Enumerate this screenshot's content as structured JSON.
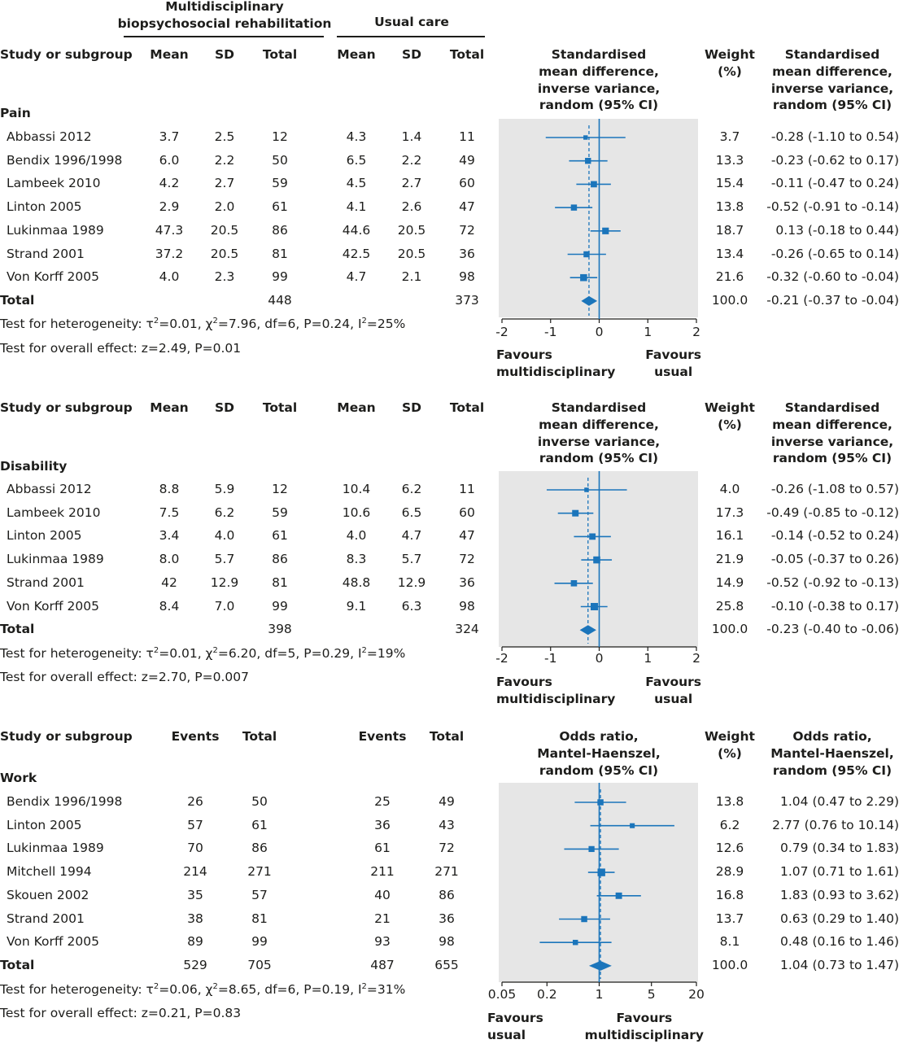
{
  "header": {
    "group1": "Multidisciplinary\nbiopsychosocial rehabilitation",
    "group2": "Usual care"
  },
  "panels": [
    {
      "id": "pain",
      "col_study": "Study or subgroup",
      "col_mean": "Mean",
      "col_sd": "SD",
      "col_total": "Total",
      "col_effect": "Standardised\nmean difference,\ninverse variance,\nrandom (95% CI)",
      "col_weight": "Weight\n(%)",
      "col_ci": "Standardised\nmean difference,\ninverse variance,\nrandom (95% CI)",
      "subgroup": "Pain",
      "rows": [
        {
          "study": "Abbassi 2012",
          "m1": "3.7",
          "sd1": "2.5",
          "n1": "12",
          "m2": "4.3",
          "sd2": "1.4",
          "n2": "11",
          "weight": "3.7",
          "ci": "-0.28 (-1.10 to 0.54)"
        },
        {
          "study": "Bendix 1996/1998",
          "m1": "6.0",
          "sd1": "2.2",
          "n1": "50",
          "m2": "6.5",
          "sd2": "2.2",
          "n2": "49",
          "weight": "13.3",
          "ci": "-0.23 (-0.62 to 0.17)"
        },
        {
          "study": "Lambeek 2010",
          "m1": "4.2",
          "sd1": "2.7",
          "n1": "59",
          "m2": "4.5",
          "sd2": "2.7",
          "n2": "60",
          "weight": "15.4",
          "ci": "-0.11 (-0.47 to 0.24)"
        },
        {
          "study": "Linton 2005",
          "m1": "2.9",
          "sd1": "2.0",
          "n1": "61",
          "m2": "4.1",
          "sd2": "2.6",
          "n2": "47",
          "weight": "13.8",
          "ci": "-0.52 (-0.91 to -0.14)"
        },
        {
          "study": "Lukinmaa 1989",
          "m1": "47.3",
          "sd1": "20.5",
          "n1": "86",
          "m2": "44.6",
          "sd2": "20.5",
          "n2": "72",
          "weight": "18.7",
          "ci": "0.13 (-0.18 to 0.44)"
        },
        {
          "study": "Strand 2001",
          "m1": "37.2",
          "sd1": "20.5",
          "n1": "81",
          "m2": "42.5",
          "sd2": "20.5",
          "n2": "36",
          "weight": "13.4",
          "ci": "-0.26 (-0.65 to 0.14)"
        },
        {
          "study": "Von Korff 2005",
          "m1": "4.0",
          "sd1": "2.3",
          "n1": "99",
          "m2": "4.7",
          "sd2": "2.1",
          "n2": "98",
          "weight": "21.6",
          "ci": "-0.32 (-0.60 to -0.04)"
        }
      ],
      "total": {
        "label": "Total",
        "n1": "448",
        "n2": "373",
        "weight": "100.0",
        "ci": "-0.21 (-0.37 to -0.04)"
      },
      "heterogeneity_pre": "Test for heterogeneity: τ",
      "heterogeneity_mid1": "=0.01, χ",
      "heterogeneity_mid2": "=7.96, df=6, P=0.24, I",
      "heterogeneity_end": "=25%",
      "overall": "Test for overall effect: z=2.49, P=0.01",
      "favours_left": "Favours\nmultidisciplinary",
      "favours_right": "Favours\nusual"
    },
    {
      "id": "disability",
      "col_study": "Study or subgroup",
      "col_mean": "Mean",
      "col_sd": "SD",
      "col_total": "Total",
      "col_effect": "Standardised\nmean difference,\ninverse variance,\nrandom (95% CI)",
      "col_weight": "Weight\n(%)",
      "col_ci": "Standardised\nmean difference,\ninverse variance,\nrandom (95% CI)",
      "subgroup": "Disability",
      "rows": [
        {
          "study": "Abbassi 2012",
          "m1": "8.8",
          "sd1": "5.9",
          "n1": "12",
          "m2": "10.4",
          "sd2": "6.2",
          "n2": "11",
          "weight": "4.0",
          "ci": "-0.26 (-1.08 to 0.57)"
        },
        {
          "study": "Lambeek 2010",
          "m1": "7.5",
          "sd1": "6.2",
          "n1": "59",
          "m2": "10.6",
          "sd2": "6.5",
          "n2": "60",
          "weight": "17.3",
          "ci": "-0.49 (-0.85 to -0.12)"
        },
        {
          "study": "Linton 2005",
          "m1": "3.4",
          "sd1": "4.0",
          "n1": "61",
          "m2": "4.0",
          "sd2": "4.7",
          "n2": "47",
          "weight": "16.1",
          "ci": "-0.14 (-0.52 to 0.24)"
        },
        {
          "study": "Lukinmaa 1989",
          "m1": "8.0",
          "sd1": "5.7",
          "n1": "86",
          "m2": "8.3",
          "sd2": "5.7",
          "n2": "72",
          "weight": "21.9",
          "ci": "-0.05 (-0.37 to 0.26)"
        },
        {
          "study": "Strand 2001",
          "m1": "42",
          "sd1": "12.9",
          "n1": "81",
          "m2": "48.8",
          "sd2": "12.9",
          "n2": "36",
          "weight": "14.9",
          "ci": "-0.52 (-0.92 to -0.13)"
        },
        {
          "study": "Von Korff 2005",
          "m1": "8.4",
          "sd1": "7.0",
          "n1": "99",
          "m2": "9.1",
          "sd2": "6.3",
          "n2": "98",
          "weight": "25.8",
          "ci": "-0.10 (-0.38 to 0.17)"
        }
      ],
      "total": {
        "label": "Total",
        "n1": "398",
        "n2": "324",
        "weight": "100.0",
        "ci": "-0.23 (-0.40 to -0.06)"
      },
      "heterogeneity_pre": "Test for heterogeneity: τ",
      "heterogeneity_mid1": "=0.01, χ",
      "heterogeneity_mid2": "=6.20, df=5, P=0.29, I",
      "heterogeneity_end": "=19%",
      "overall": "Test for overall effect: z=2.70, P=0.007",
      "favours_left": "Favours\nmultidisciplinary",
      "favours_right": "Favours\nusual"
    },
    {
      "id": "work",
      "col_study": "Study or subgroup",
      "col_events": "Events",
      "col_total": "Total",
      "col_effect": "Odds ratio,\nMantel-Haenszel,\nrandom (95% CI)",
      "col_weight": "Weight\n(%)",
      "col_ci": "Odds ratio,\nMantel-Haenszel,\nrandom (95% CI)",
      "subgroup": "Work",
      "rows": [
        {
          "study": "Bendix 1996/1998",
          "e1": "26",
          "n1": "50",
          "e2": "25",
          "n2": "49",
          "weight": "13.8",
          "ci": "1.04 (0.47 to 2.29)"
        },
        {
          "study": "Linton 2005",
          "e1": "57",
          "n1": "61",
          "e2": "36",
          "n2": "43",
          "weight": "6.2",
          "ci": "2.77 (0.76 to 10.14)"
        },
        {
          "study": "Lukinmaa 1989",
          "e1": "70",
          "n1": "86",
          "e2": "61",
          "n2": "72",
          "weight": "12.6",
          "ci": "0.79 (0.34 to 1.83)"
        },
        {
          "study": "Mitchell 1994",
          "e1": "214",
          "n1": "271",
          "e2": "211",
          "n2": "271",
          "weight": "28.9",
          "ci": "1.07 (0.71 to 1.61)"
        },
        {
          "study": "Skouen 2002",
          "e1": "35",
          "n1": "57",
          "e2": "40",
          "n2": "86",
          "weight": "16.8",
          "ci": "1.83 (0.93 to 3.62)"
        },
        {
          "study": "Strand 2001",
          "e1": "38",
          "n1": "81",
          "e2": "21",
          "n2": "36",
          "weight": "13.7",
          "ci": "0.63 (0.29 to 1.40)"
        },
        {
          "study": "Von Korff 2005",
          "e1": "89",
          "n1": "99",
          "e2": "93",
          "n2": "98",
          "weight": "8.1",
          "ci": "0.48 (0.16 to 1.46)"
        }
      ],
      "total": {
        "label": "Total",
        "e1": "529",
        "n1": "705",
        "e2": "487",
        "n2": "655",
        "weight": "100.0",
        "ci": "1.04 (0.73 to 1.47)"
      },
      "heterogeneity_pre": "Test for heterogeneity: τ",
      "heterogeneity_mid1": "=0.06, χ",
      "heterogeneity_mid2": "=8.65, df=6, P=0.19, I",
      "heterogeneity_end": "=31%",
      "overall": "Test for overall effect: z=0.21, P=0.83",
      "favours_left": "Favours\nusual",
      "favours_right": "Favours\nmultidisciplinary"
    }
  ],
  "chart_data": [
    {
      "type": "scatter",
      "subtype": "forest",
      "title": "Pain",
      "xlabel": "",
      "ylabel": "",
      "xlim": [
        -2,
        2
      ],
      "xscale": "linear",
      "xticks": [
        "-2",
        "-1",
        "0",
        "1",
        "2"
      ],
      "xtick_values": [
        -2,
        -1,
        0,
        1,
        2
      ],
      "null_value": 0,
      "series": [
        {
          "points": [
            {
              "est": -0.28,
              "lo": -1.1,
              "hi": 0.54,
              "w": 3.7
            },
            {
              "est": -0.23,
              "lo": -0.62,
              "hi": 0.17,
              "w": 13.3
            },
            {
              "est": -0.11,
              "lo": -0.47,
              "hi": 0.24,
              "w": 15.4
            },
            {
              "est": -0.52,
              "lo": -0.91,
              "hi": -0.14,
              "w": 13.8
            },
            {
              "est": 0.13,
              "lo": -0.18,
              "hi": 0.44,
              "w": 18.7
            },
            {
              "est": -0.26,
              "lo": -0.65,
              "hi": 0.14,
              "w": 13.4
            },
            {
              "est": -0.32,
              "lo": -0.6,
              "hi": -0.04,
              "w": 21.6
            }
          ],
          "pooled": {
            "est": -0.21,
            "lo": -0.37,
            "hi": -0.04
          }
        }
      ],
      "grid": false,
      "color": "#1b75bb"
    },
    {
      "type": "scatter",
      "subtype": "forest",
      "title": "Disability",
      "xlabel": "",
      "ylabel": "",
      "xlim": [
        -2,
        2
      ],
      "xscale": "linear",
      "xticks": [
        "-2",
        "-1",
        "0",
        "1",
        "2"
      ],
      "xtick_values": [
        -2,
        -1,
        0,
        1,
        2
      ],
      "null_value": 0,
      "series": [
        {
          "points": [
            {
              "est": -0.26,
              "lo": -1.08,
              "hi": 0.57,
              "w": 4.0
            },
            {
              "est": -0.49,
              "lo": -0.85,
              "hi": -0.12,
              "w": 17.3
            },
            {
              "est": -0.14,
              "lo": -0.52,
              "hi": 0.24,
              "w": 16.1
            },
            {
              "est": -0.05,
              "lo": -0.37,
              "hi": 0.26,
              "w": 21.9
            },
            {
              "est": -0.52,
              "lo": -0.92,
              "hi": -0.13,
              "w": 14.9
            },
            {
              "est": -0.1,
              "lo": -0.38,
              "hi": 0.17,
              "w": 25.8
            }
          ],
          "pooled": {
            "est": -0.23,
            "lo": -0.4,
            "hi": -0.06
          }
        }
      ],
      "grid": false,
      "color": "#1b75bb"
    },
    {
      "type": "scatter",
      "subtype": "forest",
      "title": "Work",
      "xlabel": "",
      "ylabel": "",
      "xlim": [
        0.05,
        20
      ],
      "xscale": "log",
      "xticks": [
        "0.05",
        "0.2",
        "1",
        "5",
        "20"
      ],
      "xtick_values": [
        0.05,
        0.2,
        1,
        5,
        20
      ],
      "null_value": 1,
      "series": [
        {
          "points": [
            {
              "est": 1.04,
              "lo": 0.47,
              "hi": 2.29,
              "w": 13.8
            },
            {
              "est": 2.77,
              "lo": 0.76,
              "hi": 10.14,
              "w": 6.2
            },
            {
              "est": 0.79,
              "lo": 0.34,
              "hi": 1.83,
              "w": 12.6
            },
            {
              "est": 1.07,
              "lo": 0.71,
              "hi": 1.61,
              "w": 28.9
            },
            {
              "est": 1.83,
              "lo": 0.93,
              "hi": 3.62,
              "w": 16.8
            },
            {
              "est": 0.63,
              "lo": 0.29,
              "hi": 1.4,
              "w": 13.7
            },
            {
              "est": 0.48,
              "lo": 0.16,
              "hi": 1.46,
              "w": 8.1
            }
          ],
          "pooled": {
            "est": 1.04,
            "lo": 0.73,
            "hi": 1.47
          }
        }
      ],
      "grid": false,
      "color": "#1b75bb"
    }
  ]
}
